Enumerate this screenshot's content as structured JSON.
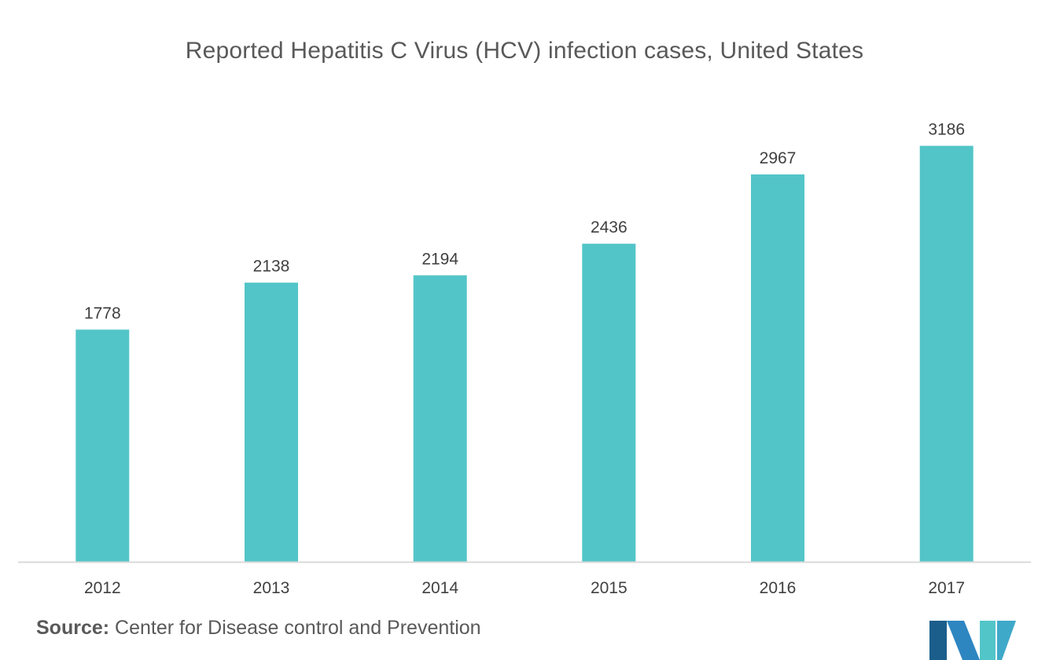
{
  "chart_data": {
    "type": "bar",
    "title": "Reported Hepatitis C Virus (HCV) infection cases, United States",
    "categories": [
      "2012",
      "2013",
      "2014",
      "2015",
      "2016",
      "2017"
    ],
    "values": [
      1778,
      2138,
      2194,
      2436,
      2967,
      3186
    ],
    "data_labels": [
      "1778",
      "2138",
      "2194",
      "2436",
      "2967",
      "3186"
    ],
    "xlabel": "",
    "ylabel": "",
    "ylim": [
      0,
      3400
    ],
    "grid": false,
    "legend": "none",
    "bar_color": "#52C5C8",
    "axis_color": "#D9D9D9",
    "text_color": "#404040"
  },
  "source": {
    "label": "Source:",
    "text": " Center for Disease control and Prevention"
  },
  "logo": {
    "icon": "mordor-intelligence-logo-icon",
    "colors": [
      "#1B5E8C",
      "#2E86C1",
      "#52C5C8"
    ]
  }
}
